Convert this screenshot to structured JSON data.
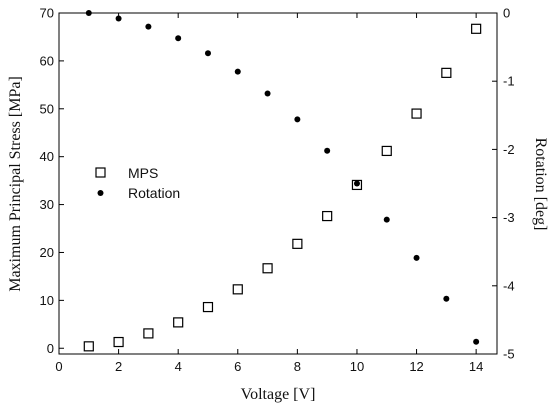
{
  "chart_data": {
    "type": "scatter",
    "xlabel": "Voltage [V]",
    "ylabel": "Maximum Principal Stress [MPa]",
    "y2label": "Rotation [deg]",
    "xlim": [
      0,
      14.7
    ],
    "ylim": [
      -1.2,
      70
    ],
    "y2lim": [
      -5,
      0
    ],
    "x_ticks": [
      0,
      2,
      4,
      6,
      8,
      10,
      12,
      14
    ],
    "y_ticks": [
      0,
      10,
      20,
      30,
      40,
      50,
      60,
      70
    ],
    "y2_ticks": [
      0,
      -1,
      -2,
      -3,
      -4,
      -5
    ],
    "legend": {
      "placement": "center-left",
      "entries": [
        "MPS",
        "Rotation"
      ]
    },
    "grid": false,
    "series": [
      {
        "name": "MPS",
        "axis": "left",
        "marker": "open-square",
        "x": [
          1,
          2,
          3,
          4,
          5,
          6,
          7,
          8,
          9,
          10,
          11,
          12,
          13,
          14
        ],
        "y": [
          0.4,
          1.3,
          3.1,
          5.4,
          8.6,
          12.3,
          16.7,
          21.8,
          27.6,
          34.1,
          41.2,
          49.0,
          57.5,
          66.7
        ]
      },
      {
        "name": "Rotation",
        "axis": "right",
        "marker": "filled-circle",
        "x": [
          1,
          2,
          3,
          4,
          5,
          6,
          7,
          8,
          9,
          10,
          11,
          12,
          13,
          14
        ],
        "y": [
          0,
          -0.08,
          -0.2,
          -0.37,
          -0.59,
          -0.86,
          -1.18,
          -1.56,
          -2.02,
          -2.5,
          -3.03,
          -3.59,
          -4.19,
          -4.82
        ]
      }
    ]
  }
}
